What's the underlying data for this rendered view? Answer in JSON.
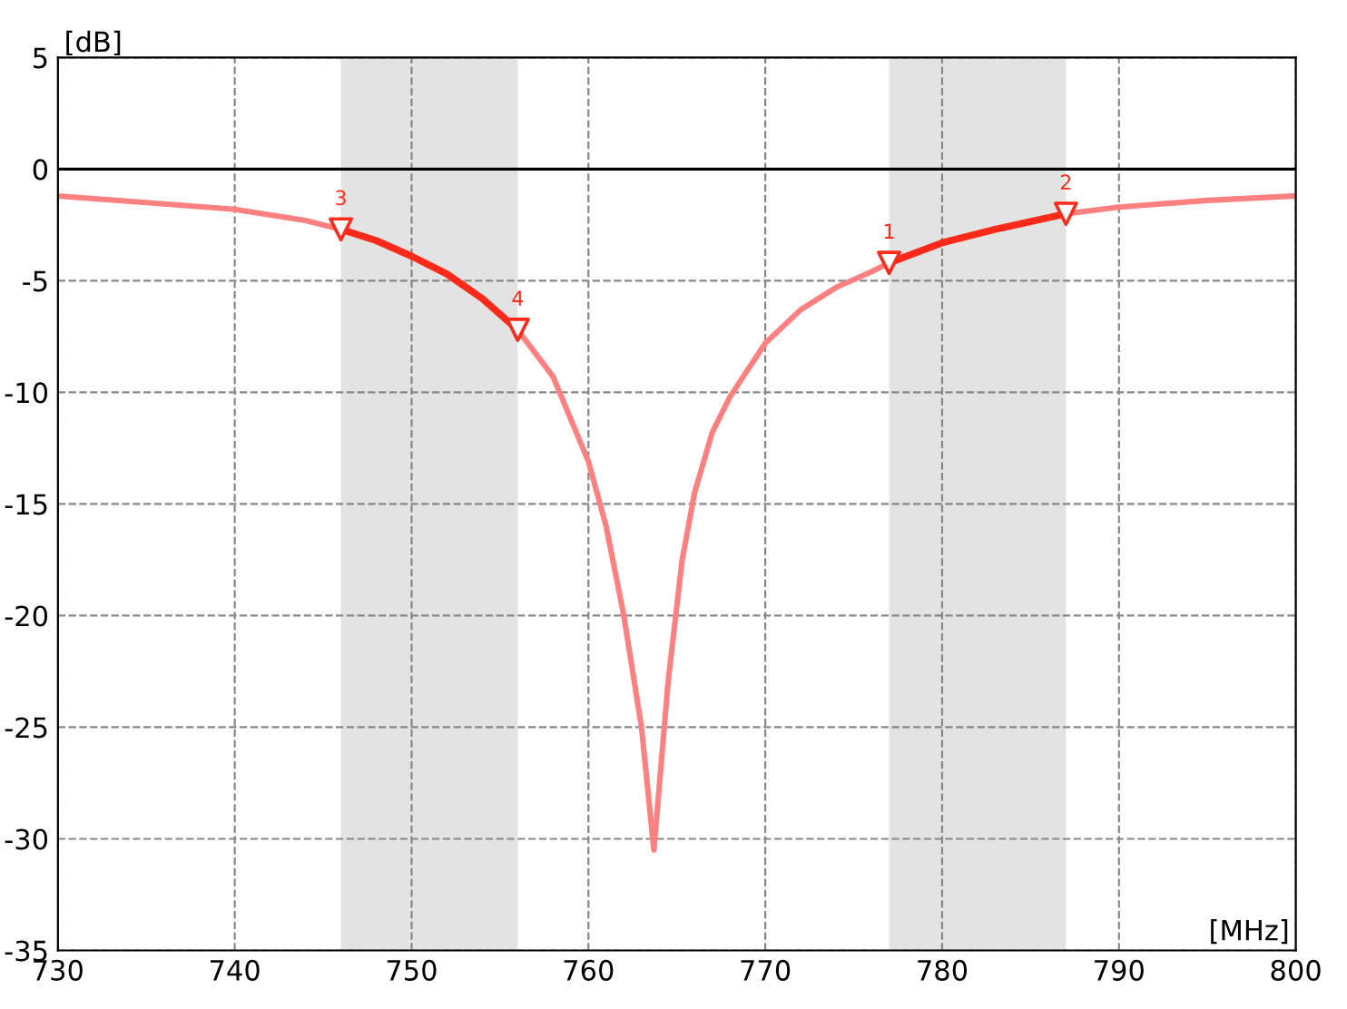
{
  "chart_data": {
    "type": "line",
    "xlabel": "[MHz]",
    "ylabel": "[dB]",
    "xlim": [
      730,
      800
    ],
    "ylim": [
      -35,
      5
    ],
    "xticks": [
      730,
      740,
      750,
      760,
      770,
      780,
      790,
      800
    ],
    "yticks": [
      -35,
      -30,
      -25,
      -20,
      -15,
      -10,
      -5,
      0,
      5
    ],
    "grid": true,
    "line_style": "solid",
    "series": [
      {
        "color": "#ff8080",
        "x": [
          730,
          735,
          740,
          744,
          746,
          748,
          750,
          752,
          754,
          756,
          758,
          760,
          761,
          762,
          763,
          763.7,
          764.5,
          765.3,
          766,
          767,
          768,
          770,
          772,
          774,
          776,
          777,
          780,
          783,
          787,
          790,
          795,
          800
        ],
        "values": [
          -1.2,
          -1.5,
          -1.8,
          -2.3,
          -2.7,
          -3.2,
          -3.9,
          -4.7,
          -5.8,
          -7.2,
          -9.3,
          -13.1,
          -16,
          -20,
          -25,
          -30.5,
          -23,
          -17.5,
          -14.5,
          -11.8,
          -10.2,
          -7.8,
          -6.3,
          -5.3,
          -4.6,
          -4.2,
          -3.3,
          -2.7,
          -2.0,
          -1.7,
          -1.4,
          -1.2
        ]
      },
      {
        "color": "#ff2a1a",
        "x": [
          746,
          748,
          750,
          752,
          754,
          756
        ],
        "values": [
          -2.7,
          -3.2,
          -3.9,
          -4.7,
          -5.8,
          -7.2
        ]
      },
      {
        "color": "#ff2a1a",
        "x": [
          777,
          780,
          783,
          787
        ],
        "values": [
          -4.2,
          -3.3,
          -2.7,
          -2.0
        ]
      },
      {
        "type": "scatter",
        "color": "#ff2a1a",
        "marker": "triangle",
        "x": [
          777,
          787,
          746,
          756
        ],
        "values": [
          -4.2,
          -2.0,
          -2.7,
          -7.2
        ]
      }
    ],
    "ref_lines": [
      {
        "axis": "y",
        "value": 0,
        "color": "#000000"
      }
    ],
    "bands": [
      {
        "axis": "x",
        "from": 746,
        "to": 756,
        "color": "#e3e3e3"
      },
      {
        "axis": "x",
        "from": 777,
        "to": 787,
        "color": "#e3e3e3"
      }
    ],
    "annotations": [
      {
        "text": "1",
        "x": 777,
        "y": -4.2
      },
      {
        "text": "2",
        "x": 787,
        "y": -2.0
      },
      {
        "text": "3",
        "x": 746,
        "y": -2.7
      },
      {
        "text": "4",
        "x": 756,
        "y": -7.2
      }
    ]
  }
}
